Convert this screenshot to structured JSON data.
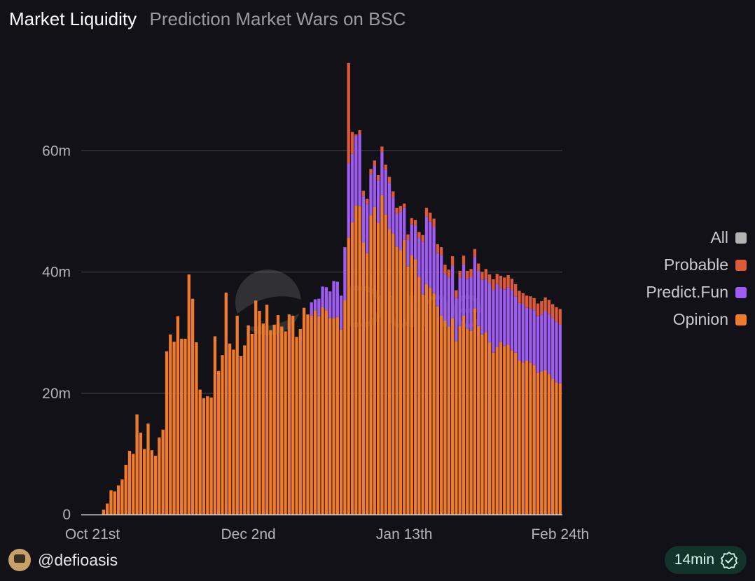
{
  "header": {
    "title": "Market Liquidity",
    "subtitle": "Prediction Market Wars on BSC"
  },
  "chart_data": {
    "type": "bar",
    "stacked": true,
    "title": "Market Liquidity",
    "xlabel": "",
    "ylabel": "",
    "ylim": [
      0,
      75
    ],
    "y_ticks": [
      0,
      20,
      40,
      60
    ],
    "y_tick_labels": [
      "0",
      "20m",
      "40m",
      "60m"
    ],
    "x_tick_labels": [
      {
        "label": "Oct 21st",
        "index": 0
      },
      {
        "label": "Dec 2nd",
        "index": 42
      },
      {
        "label": "Jan 13th",
        "index": 84
      },
      {
        "label": "Feb 24th",
        "index": 126
      }
    ],
    "legend": [
      "All",
      "Probable",
      "Predict.Fun",
      "Opinion"
    ],
    "legend_colors": {
      "All": "#b3b3b3",
      "Probable": "#dd5a38",
      "Predict.Fun": "#9f5cf0",
      "Opinion": "#f07b2c"
    },
    "watermark": "Dune",
    "series": [
      {
        "name": "Opinion",
        "color": "#f07b2c",
        "values": [
          0.0,
          0.0,
          0.0,
          0.8,
          1.8,
          4.0,
          3.8,
          4.8,
          5.8,
          8.2,
          10.5,
          10.0,
          16.5,
          13.5,
          10.8,
          15.0,
          10.6,
          9.7,
          12.7,
          14.0,
          26.9,
          29.7,
          28.5,
          32.7,
          29.0,
          29.0,
          39.6,
          35.6,
          28.4,
          20.6,
          19.2,
          19.5,
          19.3,
          29.4,
          23.7,
          26.3,
          36.6,
          28.2,
          27.2,
          32.8,
          26.1,
          27.9,
          31.2,
          29.8,
          35.3,
          33.6,
          31.5,
          34.6,
          30.4,
          31.3,
          32.9,
          31.0,
          30.2,
          33.0,
          32.8,
          29.3,
          30.6,
          34.1,
          33.0,
          32.8,
          33.7,
          32.7,
          34.2,
          33.7,
          32.4,
          32.4,
          32.6,
          30.5,
          35.4,
          45.7,
          48.2,
          51.0,
          50.9,
          44.9,
          43.1,
          49.4,
          50.7,
          48.1,
          52.7,
          49.5,
          47.1,
          46.3,
          44.2,
          43.6,
          45.3,
          40.9,
          42.8,
          42.1,
          39.2,
          36.3,
          38.0,
          37.4,
          36.5,
          34.3,
          32.8,
          32.0,
          31.0,
          32.4,
          28.6,
          31.1,
          32.8,
          30.7,
          30.3,
          34.0,
          31.1,
          29.7,
          30.1,
          28.4,
          26.7,
          27.6,
          28.5,
          27.8,
          28.0,
          27.1,
          26.7,
          25.4,
          25.1,
          25.4,
          25.1,
          24.6,
          23.4,
          23.6,
          23.8,
          23.2,
          22.4,
          21.8,
          21.6
        ]
      },
      {
        "name": "Predict.Fun",
        "color": "#9f5cf0",
        "values": [
          0,
          0,
          0,
          0,
          0,
          0,
          0,
          0,
          0,
          0,
          0,
          0,
          0,
          0,
          0,
          0,
          0,
          0,
          0,
          0,
          0,
          0,
          0,
          0,
          0,
          0,
          0,
          0,
          0,
          0,
          0,
          0,
          0,
          0,
          0,
          0,
          0,
          0,
          0,
          0,
          0,
          0,
          0,
          0,
          0,
          0,
          0,
          0,
          0,
          0,
          0,
          0,
          0,
          0,
          0,
          0,
          0,
          0,
          0,
          2.2,
          1.8,
          2.9,
          3.4,
          3.8,
          4.4,
          6.1,
          5.8,
          5.6,
          8.7,
          12.2,
          11.3,
          11.5,
          11.8,
          7.6,
          8.1,
          6.7,
          6.8,
          7.0,
          7.1,
          7.4,
          7.6,
          6.0,
          5.4,
          6.3,
          5.3,
          4.4,
          5.1,
          5.6,
          6.4,
          8.7,
          11.1,
          10.9,
          10.9,
          8.8,
          10.0,
          7.7,
          8.1,
          8.6,
          7.1,
          8.0,
          8.5,
          8.2,
          8.9,
          8.5,
          9.1,
          9.0,
          8.8,
          9.7,
          10.3,
          10.4,
          8.9,
          9.3,
          9.5,
          9.9,
          9.3,
          9.5,
          9.6,
          8.7,
          8.9,
          9.1,
          9.3,
          9.4,
          9.8,
          9.9,
          10.0,
          10.0,
          9.7
        ]
      },
      {
        "name": "Probable",
        "color": "#dd5a38",
        "values": [
          0,
          0,
          0,
          0,
          0,
          0,
          0,
          0,
          0,
          0,
          0,
          0,
          0,
          0,
          0,
          0,
          0,
          0,
          0,
          0,
          0,
          0,
          0,
          0,
          0,
          0,
          0,
          0,
          0,
          0,
          0,
          0,
          0,
          0,
          0,
          0,
          0,
          0,
          0,
          0,
          0,
          0,
          0,
          0,
          0,
          0,
          0,
          0,
          0,
          0,
          0,
          0,
          0,
          0,
          0,
          0,
          0,
          0,
          0,
          0,
          0,
          0,
          0,
          0,
          0,
          0,
          0,
          0,
          0,
          16.6,
          3.6,
          0.2,
          0.7,
          0.9,
          0.9,
          0.9,
          0.9,
          0.9,
          0.9,
          0.8,
          1.0,
          1.0,
          1.0,
          1.0,
          0.7,
          0.9,
          1.0,
          0.9,
          1.0,
          1.1,
          1.5,
          1.5,
          1.4,
          1.5,
          1.3,
          1.5,
          1.3,
          1.6,
          1.3,
          1.1,
          1.4,
          1.3,
          1.3,
          1.3,
          1.2,
          1.3,
          1.6,
          1.5,
          1.8,
          1.7,
          2.0,
          2.0,
          2.0,
          1.9,
          2.0,
          2.0,
          1.8,
          2.0,
          2.0,
          2.0,
          2.1,
          2.2,
          2.2,
          2.3,
          2.3,
          2.4,
          2.6
        ]
      }
    ]
  },
  "footer": {
    "username": "@defioasis",
    "refresh": "14min"
  }
}
